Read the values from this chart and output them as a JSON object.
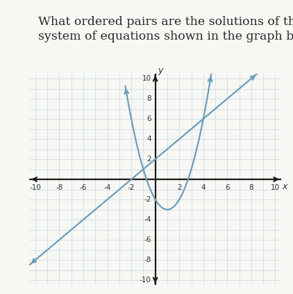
{
  "title_line1": "What ordered pairs are the solutions of the",
  "title_line2": "system of equations shown in the graph below?",
  "title_fontsize": 12.5,
  "line_color": "#6b9db8",
  "parabola_color": "#6b9db8",
  "line_slope": 1,
  "line_intercept": 2,
  "parabola_coeffs": [
    1,
    -2,
    -2
  ],
  "xlim": [
    -10.5,
    10.5
  ],
  "ylim": [
    -10.5,
    10.5
  ],
  "xticks": [
    -10,
    -8,
    -6,
    -4,
    -2,
    2,
    4,
    6,
    8,
    10
  ],
  "yticks": [
    -10,
    -8,
    -6,
    -4,
    -2,
    2,
    4,
    6,
    8,
    10
  ],
  "xlabel": "x",
  "ylabel": "y",
  "grid_color": "#c5d8e2",
  "bg_color": "#f2f2ee",
  "fig_color": "#f7f7f4",
  "line_width": 1.6,
  "axis_color": "#1a1a1a",
  "tick_fontsize": 7.5,
  "label_fontsize": 9
}
